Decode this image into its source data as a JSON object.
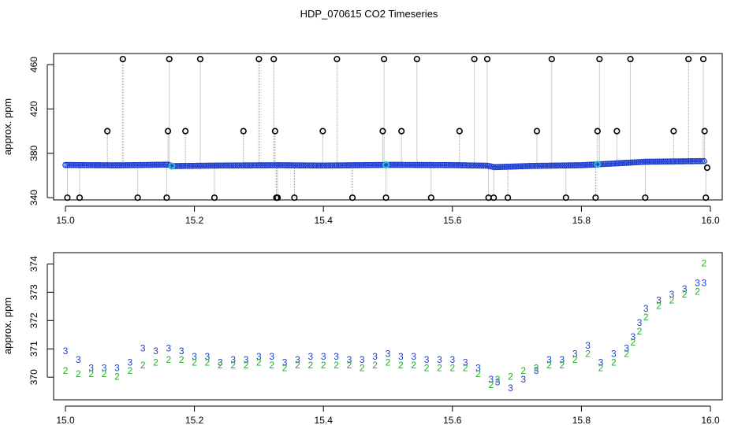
{
  "title": "HDP_070615  CO2 Timeseries",
  "chart_data": [
    {
      "type": "scatter",
      "ylabel": "approx. ppm",
      "xlabel": "",
      "xlim": [
        15.0,
        16.0
      ],
      "ylim": [
        338,
        470
      ],
      "x_ticks": [
        "15.0",
        "15.2",
        "15.4",
        "15.6",
        "15.8",
        "16.0"
      ],
      "y_ticks": [
        "340",
        "380",
        "420",
        "460"
      ],
      "colors": {
        "spike_points": "#000000",
        "baseline_series": "#1f3fd0",
        "cyan_markers": "#20c0d0",
        "dropline": "#999999"
      },
      "baseline": [
        [
          15.0,
          369.5
        ],
        [
          15.08,
          369.2
        ],
        [
          15.16,
          369.8
        ],
        [
          15.165,
          368.5
        ],
        [
          15.24,
          369.0
        ],
        [
          15.33,
          369.3
        ],
        [
          15.4,
          369.0
        ],
        [
          15.5,
          369.6
        ],
        [
          15.6,
          369.4
        ],
        [
          15.655,
          368.8
        ],
        [
          15.665,
          367.5
        ],
        [
          15.72,
          368.6
        ],
        [
          15.8,
          369.3
        ],
        [
          15.84,
          370.5
        ],
        [
          15.9,
          372.4
        ],
        [
          15.99,
          373.0
        ]
      ],
      "cyan_markers": [
        15.165,
        15.497,
        15.825
      ],
      "spikes": [
        [
          15.003,
          340
        ],
        [
          15.022,
          340
        ],
        [
          15.065,
          400
        ],
        [
          15.089,
          465
        ],
        [
          15.112,
          340
        ],
        [
          15.157,
          340
        ],
        [
          15.159,
          400
        ],
        [
          15.161,
          465
        ],
        [
          15.186,
          400
        ],
        [
          15.209,
          465
        ],
        [
          15.231,
          340
        ],
        [
          15.276,
          400
        ],
        [
          15.3,
          465
        ],
        [
          15.323,
          465
        ],
        [
          15.325,
          400
        ],
        [
          15.327,
          340
        ],
        [
          15.329,
          340
        ],
        [
          15.355,
          340
        ],
        [
          15.399,
          400
        ],
        [
          15.421,
          465
        ],
        [
          15.445,
          340
        ],
        [
          15.492,
          400
        ],
        [
          15.494,
          465
        ],
        [
          15.497,
          340
        ],
        [
          15.521,
          400
        ],
        [
          15.545,
          465
        ],
        [
          15.567,
          340
        ],
        [
          15.611,
          400
        ],
        [
          15.634,
          465
        ],
        [
          15.654,
          465
        ],
        [
          15.656,
          340
        ],
        [
          15.664,
          340
        ],
        [
          15.686,
          340
        ],
        [
          15.731,
          400
        ],
        [
          15.754,
          465
        ],
        [
          15.776,
          340
        ],
        [
          15.822,
          340
        ],
        [
          15.825,
          400
        ],
        [
          15.828,
          465
        ],
        [
          15.855,
          400
        ],
        [
          15.876,
          465
        ],
        [
          15.899,
          340
        ],
        [
          15.943,
          400
        ],
        [
          15.966,
          465
        ],
        [
          15.989,
          465
        ],
        [
          15.991,
          400
        ],
        [
          15.993,
          340
        ],
        [
          15.995,
          367
        ]
      ]
    },
    {
      "type": "scatter",
      "ylabel": "approx. ppm",
      "xlabel": "",
      "xlim": [
        15.0,
        16.0
      ],
      "ylim": [
        369.2,
        374.4
      ],
      "x_ticks": [
        "15.0",
        "15.2",
        "15.4",
        "15.6",
        "15.8",
        "16.0"
      ],
      "y_ticks": [
        "370",
        "371",
        "372",
        "373",
        "374"
      ],
      "series": [
        {
          "glyph": "3",
          "color": "#1f3fd0",
          "values": [
            [
              15.0,
              370.9
            ],
            [
              15.02,
              370.6
            ],
            [
              15.04,
              370.3
            ],
            [
              15.06,
              370.3
            ],
            [
              15.08,
              370.3
            ],
            [
              15.1,
              370.5
            ],
            [
              15.12,
              371.0
            ],
            [
              15.14,
              370.9
            ],
            [
              15.16,
              371.0
            ],
            [
              15.18,
              370.9
            ],
            [
              15.2,
              370.7
            ],
            [
              15.22,
              370.7
            ],
            [
              15.24,
              370.5
            ],
            [
              15.26,
              370.6
            ],
            [
              15.28,
              370.6
            ],
            [
              15.3,
              370.7
            ],
            [
              15.32,
              370.7
            ],
            [
              15.34,
              370.5
            ],
            [
              15.36,
              370.6
            ],
            [
              15.38,
              370.7
            ],
            [
              15.4,
              370.7
            ],
            [
              15.42,
              370.7
            ],
            [
              15.44,
              370.6
            ],
            [
              15.46,
              370.6
            ],
            [
              15.48,
              370.7
            ],
            [
              15.5,
              370.8
            ],
            [
              15.52,
              370.7
            ],
            [
              15.54,
              370.7
            ],
            [
              15.56,
              370.6
            ],
            [
              15.58,
              370.6
            ],
            [
              15.6,
              370.6
            ],
            [
              15.62,
              370.5
            ],
            [
              15.64,
              370.3
            ],
            [
              15.66,
              369.9
            ],
            [
              15.67,
              369.8
            ],
            [
              15.69,
              369.6
            ],
            [
              15.71,
              369.9
            ],
            [
              15.73,
              370.2
            ],
            [
              15.75,
              370.6
            ],
            [
              15.77,
              370.6
            ],
            [
              15.79,
              370.8
            ],
            [
              15.81,
              371.1
            ],
            [
              15.83,
              370.5
            ],
            [
              15.85,
              370.8
            ],
            [
              15.87,
              371.0
            ],
            [
              15.88,
              371.4
            ],
            [
              15.89,
              371.9
            ],
            [
              15.9,
              372.4
            ],
            [
              15.92,
              372.7
            ],
            [
              15.94,
              372.9
            ],
            [
              15.96,
              373.1
            ],
            [
              15.98,
              373.3
            ],
            [
              15.99,
              373.3
            ]
          ]
        },
        {
          "glyph": "2",
          "color": "#1fb01f",
          "values": [
            [
              15.0,
              370.2
            ],
            [
              15.02,
              370.1
            ],
            [
              15.04,
              370.1
            ],
            [
              15.06,
              370.1
            ],
            [
              15.08,
              370.0
            ],
            [
              15.1,
              370.2
            ],
            [
              15.12,
              370.4
            ],
            [
              15.14,
              370.5
            ],
            [
              15.16,
              370.6
            ],
            [
              15.18,
              370.6
            ],
            [
              15.2,
              370.5
            ],
            [
              15.22,
              370.5
            ],
            [
              15.24,
              370.4
            ],
            [
              15.26,
              370.4
            ],
            [
              15.28,
              370.4
            ],
            [
              15.3,
              370.5
            ],
            [
              15.32,
              370.4
            ],
            [
              15.34,
              370.3
            ],
            [
              15.36,
              370.4
            ],
            [
              15.38,
              370.4
            ],
            [
              15.4,
              370.4
            ],
            [
              15.42,
              370.4
            ],
            [
              15.44,
              370.4
            ],
            [
              15.46,
              370.3
            ],
            [
              15.48,
              370.4
            ],
            [
              15.5,
              370.5
            ],
            [
              15.52,
              370.4
            ],
            [
              15.54,
              370.4
            ],
            [
              15.56,
              370.3
            ],
            [
              15.58,
              370.3
            ],
            [
              15.6,
              370.3
            ],
            [
              15.62,
              370.3
            ],
            [
              15.64,
              370.1
            ],
            [
              15.66,
              369.7
            ],
            [
              15.67,
              369.9
            ],
            [
              15.69,
              370.0
            ],
            [
              15.71,
              370.2
            ],
            [
              15.73,
              370.3
            ],
            [
              15.75,
              370.4
            ],
            [
              15.77,
              370.4
            ],
            [
              15.79,
              370.6
            ],
            [
              15.81,
              370.8
            ],
            [
              15.83,
              370.3
            ],
            [
              15.85,
              370.5
            ],
            [
              15.87,
              370.8
            ],
            [
              15.88,
              371.2
            ],
            [
              15.89,
              371.6
            ],
            [
              15.9,
              372.1
            ],
            [
              15.92,
              372.5
            ],
            [
              15.94,
              372.7
            ],
            [
              15.96,
              372.9
            ],
            [
              15.98,
              373.0
            ],
            [
              15.99,
              374.0
            ]
          ]
        }
      ]
    }
  ]
}
